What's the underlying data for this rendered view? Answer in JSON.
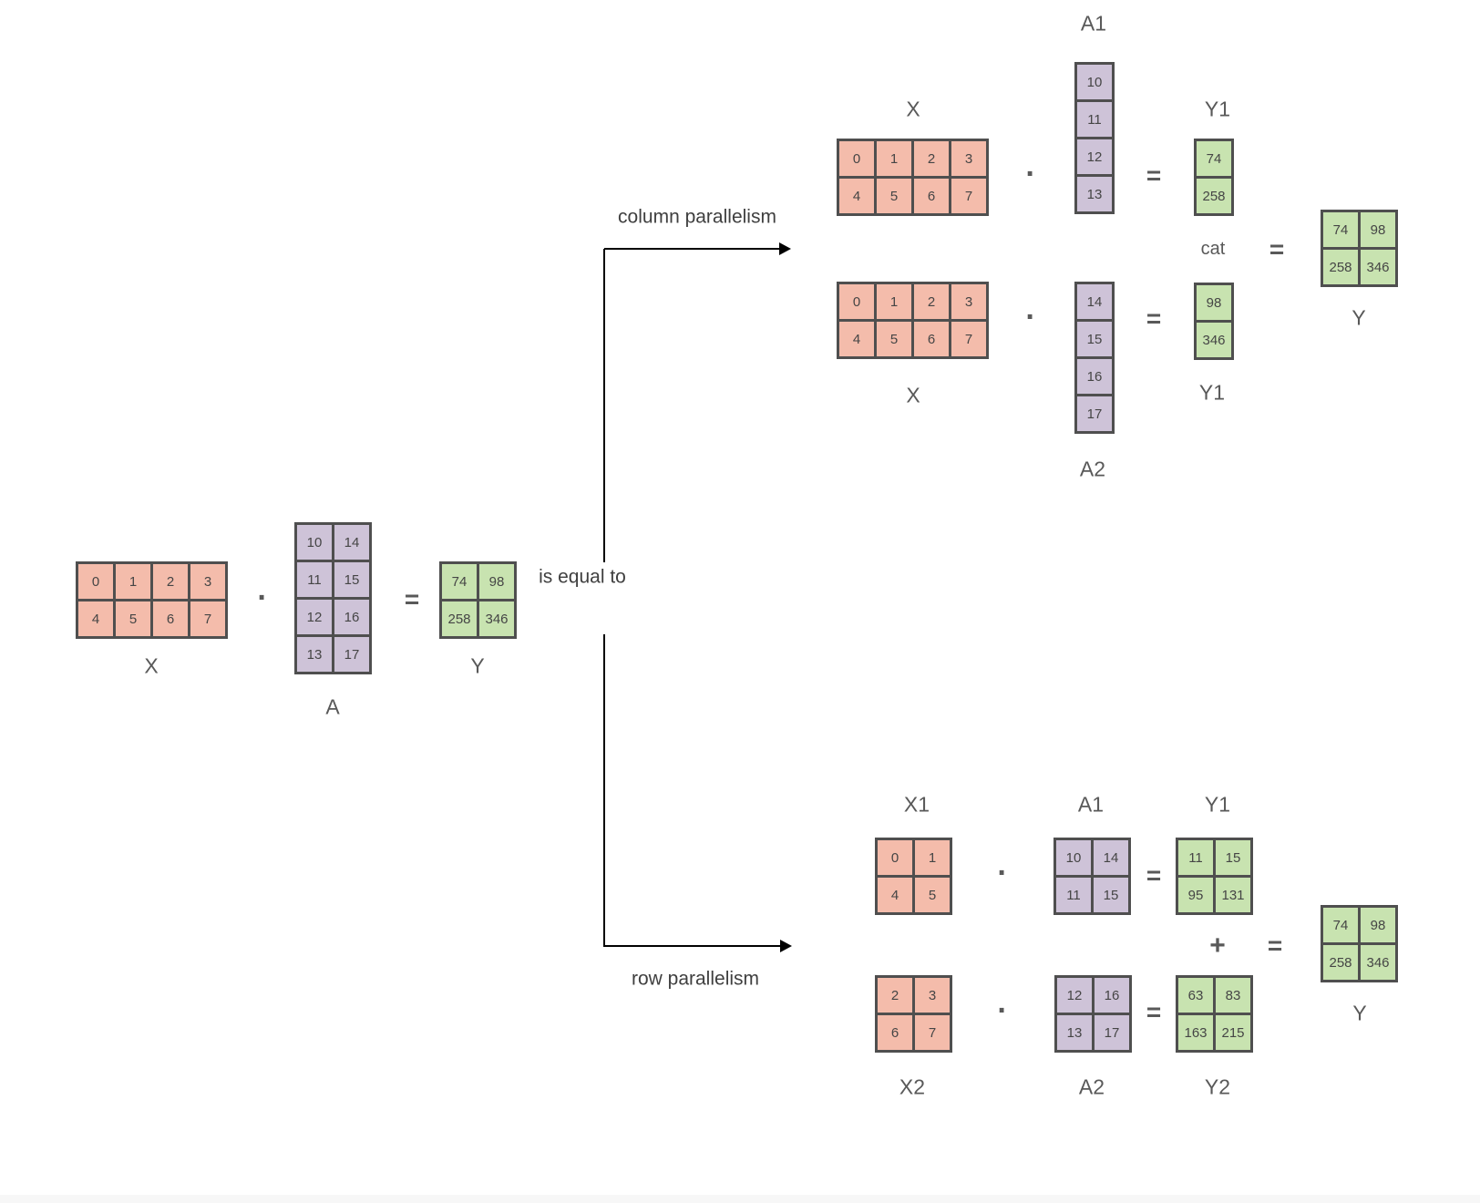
{
  "palette": {
    "x_fill": "#f4bcab",
    "a_fill": "#cec3d8",
    "y_fill": "#c8e3b0",
    "grid_line": "#4f4f4f",
    "num_color": "#454545",
    "label_color": "#595959",
    "text_color": "#3f3f3f",
    "arrow_color": "#000000"
  },
  "operators": {
    "dot": "·",
    "equals": "=",
    "plus": "+"
  },
  "connector": {
    "is_equal_to": "is equal to",
    "column_parallelism": "column parallelism",
    "row_parallelism": "row parallelism"
  },
  "base_equation": {
    "x": {
      "label": "X",
      "rows": [
        [
          "0",
          "1",
          "2",
          "3"
        ],
        [
          "4",
          "5",
          "6",
          "7"
        ]
      ]
    },
    "a": {
      "label": "A",
      "rows": [
        [
          "10",
          "14"
        ],
        [
          "11",
          "15"
        ],
        [
          "12",
          "16"
        ],
        [
          "13",
          "17"
        ]
      ]
    },
    "y": {
      "label": "Y",
      "rows": [
        [
          "74",
          "98"
        ],
        [
          "258",
          "346"
        ]
      ]
    }
  },
  "column_parallelism": {
    "top": {
      "x": {
        "label": "X",
        "rows": [
          [
            "0",
            "1",
            "2",
            "3"
          ],
          [
            "4",
            "5",
            "6",
            "7"
          ]
        ]
      },
      "a1": {
        "label": "A1",
        "rows": [
          [
            "10"
          ],
          [
            "11"
          ],
          [
            "12"
          ],
          [
            "13"
          ]
        ]
      },
      "y1": {
        "label": "Y1",
        "rows": [
          [
            "74"
          ],
          [
            "258"
          ]
        ]
      }
    },
    "bottom": {
      "x": {
        "label": "X",
        "rows": [
          [
            "0",
            "1",
            "2",
            "3"
          ],
          [
            "4",
            "5",
            "6",
            "7"
          ]
        ]
      },
      "a2": {
        "label": "A2",
        "rows": [
          [
            "14"
          ],
          [
            "15"
          ],
          [
            "16"
          ],
          [
            "17"
          ]
        ]
      },
      "y1": {
        "label": "Y1",
        "rows": [
          [
            "98"
          ],
          [
            "346"
          ]
        ]
      }
    },
    "cat": "cat",
    "y": {
      "label": "Y",
      "rows": [
        [
          "74",
          "98"
        ],
        [
          "258",
          "346"
        ]
      ]
    }
  },
  "row_parallelism": {
    "top": {
      "x1": {
        "label": "X1",
        "rows": [
          [
            "0",
            "1"
          ],
          [
            "4",
            "5"
          ]
        ]
      },
      "a1": {
        "label": "A1",
        "rows": [
          [
            "10",
            "14"
          ],
          [
            "11",
            "15"
          ]
        ]
      },
      "y1": {
        "label": "Y1",
        "rows": [
          [
            "11",
            "15"
          ],
          [
            "95",
            "131"
          ]
        ]
      }
    },
    "bottom": {
      "x2": {
        "label": "X2",
        "rows": [
          [
            "2",
            "3"
          ],
          [
            "6",
            "7"
          ]
        ]
      },
      "a2": {
        "label": "A2",
        "rows": [
          [
            "12",
            "16"
          ],
          [
            "13",
            "17"
          ]
        ]
      },
      "y2": {
        "label": "Y2",
        "rows": [
          [
            "63",
            "83"
          ],
          [
            "163",
            "215"
          ]
        ]
      }
    },
    "y": {
      "label": "Y",
      "rows": [
        [
          "74",
          "98"
        ],
        [
          "258",
          "346"
        ]
      ]
    }
  }
}
